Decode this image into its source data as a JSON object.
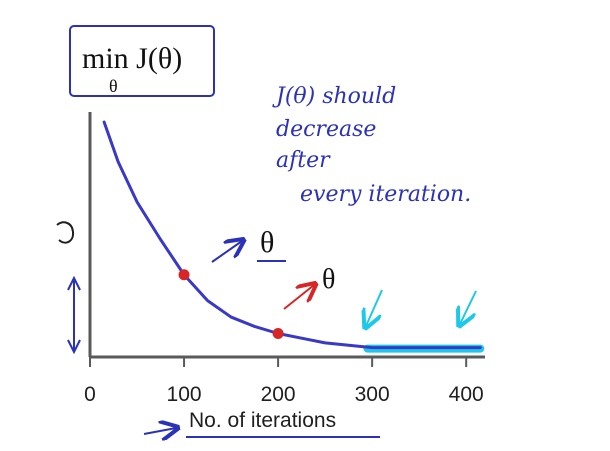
{
  "title_formula": {
    "main": "min J(θ)",
    "subscript": "θ"
  },
  "annotations": {
    "note_lines": [
      "J(θ) should",
      "decrease",
      "after",
      "every iteration."
    ],
    "blue_theta": "θ",
    "red_theta": "θ"
  },
  "colors": {
    "curve": "#3a38c7",
    "axis": "#5a5a5a",
    "point": "#d82626",
    "annotation_blue": "#2b32b8",
    "annotation_red": "#d82626",
    "highlight_cyan": "#1dc9e8"
  },
  "chart_data": {
    "type": "line",
    "title": "",
    "xlabel": "No. of iterations",
    "ylabel": "",
    "xlim": [
      0,
      420
    ],
    "ylim": [
      0,
      100
    ],
    "x_ticks": [
      0,
      100,
      200,
      300,
      400
    ],
    "x_tick_labels": [
      "0",
      "100",
      "200",
      "300",
      "400"
    ],
    "grid": false,
    "series": [
      {
        "x": [
          15,
          30,
          50,
          75,
          100,
          125,
          150,
          175,
          200,
          225,
          250,
          275,
          300,
          325,
          350,
          375,
          400,
          415
        ],
        "values": [
          100,
          83,
          66,
          50,
          35,
          24,
          17,
          13,
          10,
          8,
          6,
          5,
          4,
          4,
          4,
          4,
          4,
          4
        ]
      }
    ],
    "points": [
      {
        "x": 100,
        "y": 35
      },
      {
        "x": 200,
        "y": 10
      }
    ],
    "highlight_range": [
      295,
      415
    ]
  }
}
